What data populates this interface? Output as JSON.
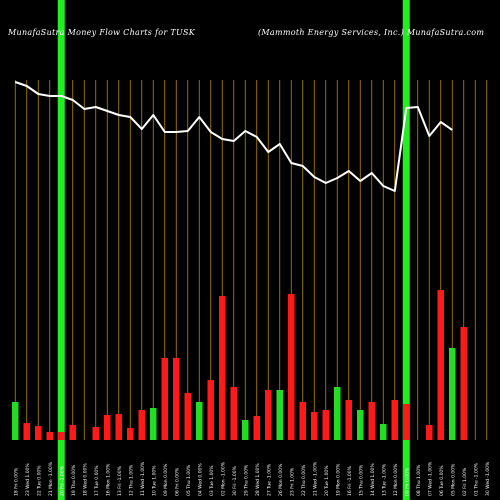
{
  "header": {
    "title_left": "MunafaSutra  Money Flow  Charts for TUSK",
    "title_right": "(Mammoth Energy Services,  Inc.) MunafaSutra.com"
  },
  "colors": {
    "background": "#000000",
    "gridline": "#b8860b",
    "line": "#ffffff",
    "bar_up": "#22dd22",
    "bar_down": "#ff1a1a",
    "highlight": "#22ee22"
  },
  "chart_data": {
    "type": "bar",
    "title": "MunafaSutra  Money Flow  Charts for TUSK",
    "subtitle": "(Mammoth Energy Services,  Inc.) MunafaSutra.com",
    "xlabel": "",
    "ylabel": "",
    "grid": true,
    "categories": [
      "18 Fri 0.00%",
      "23 Wed 1.00%",
      "22 Tue 0.00%",
      "21 Mon -1.00%",
      "20 Fri -1.00%",
      "19 Thu 0.00%",
      "18 Wed 0.00%",
      "17 Tue 0.00%",
      "16 Mon 1.00%",
      "13 Fri -1.00%",
      "12 Thu 1.00%",
      "11 Wed -1.00%",
      "10 Tue 1.00%",
      "09 Mon 0.00%",
      "06 Fri 0.00%",
      "05 Thu 1.00%",
      "04 Wed 0.00%",
      "03 Tue 1.00%",
      "02 Mon -1.00%",
      "30 Fri -1.00%",
      "29 Thu 0.00%",
      "28 Wed 1.00%",
      "27 Tue -1.00%",
      "26 Mon 0.00%",
      "23 Fri 1.00%",
      "22 Thu 0.00%",
      "21 Wed -1.00%",
      "20 Tue 1.00%",
      "19 Mon 0.00%",
      "16 Fri -1.00%",
      "15 Thu 0.00%",
      "14 Wed 1.00%",
      "13 Tue -1.00%",
      "12 Mon 0.00%",
      "09 Fri 0.00%",
      "08 Thu 1.00%",
      "07 Wed -1.00%",
      "06 Tue 0.00%",
      "05 Mon 0.00%",
      "02 Fri 1.00%",
      "01 Thu -1.00%",
      "30 Wed -1.00%"
    ],
    "series": [
      {
        "kind": "bar",
        "values": [
          38,
          17,
          14,
          8,
          8,
          15,
          0,
          13,
          25,
          26,
          12,
          30,
          32,
          82,
          82,
          47,
          38,
          60,
          144,
          53,
          20,
          24,
          50,
          50,
          146,
          38,
          28,
          30,
          53,
          40,
          30,
          38,
          16,
          40,
          36,
          0,
          15,
          150,
          92,
          113,
          0,
          0
        ],
        "colors": [
          "up",
          "down",
          "down",
          "down",
          "down",
          "down",
          "none",
          "down",
          "down",
          "down",
          "down",
          "down",
          "up",
          "down",
          "down",
          "down",
          "up",
          "down",
          "down",
          "down",
          "up",
          "down",
          "down",
          "up",
          "down",
          "down",
          "down",
          "down",
          "up",
          "down",
          "up",
          "down",
          "up",
          "down",
          "down",
          "none",
          "down",
          "down",
          "up",
          "down",
          "none",
          "none"
        ]
      },
      {
        "kind": "line",
        "values": [
          358,
          354,
          346,
          344,
          344,
          340,
          331,
          333,
          329,
          325,
          323,
          311,
          325,
          308,
          308,
          309,
          323,
          308,
          301,
          299,
          309,
          303,
          288,
          296,
          277,
          274,
          263,
          257,
          262,
          269,
          259,
          267,
          254,
          249,
          332,
          333,
          304,
          318,
          310,
          0,
          0,
          0
        ]
      }
    ],
    "highlight_columns": [
      4,
      34
    ],
    "ylim": [
      0,
      400
    ]
  }
}
